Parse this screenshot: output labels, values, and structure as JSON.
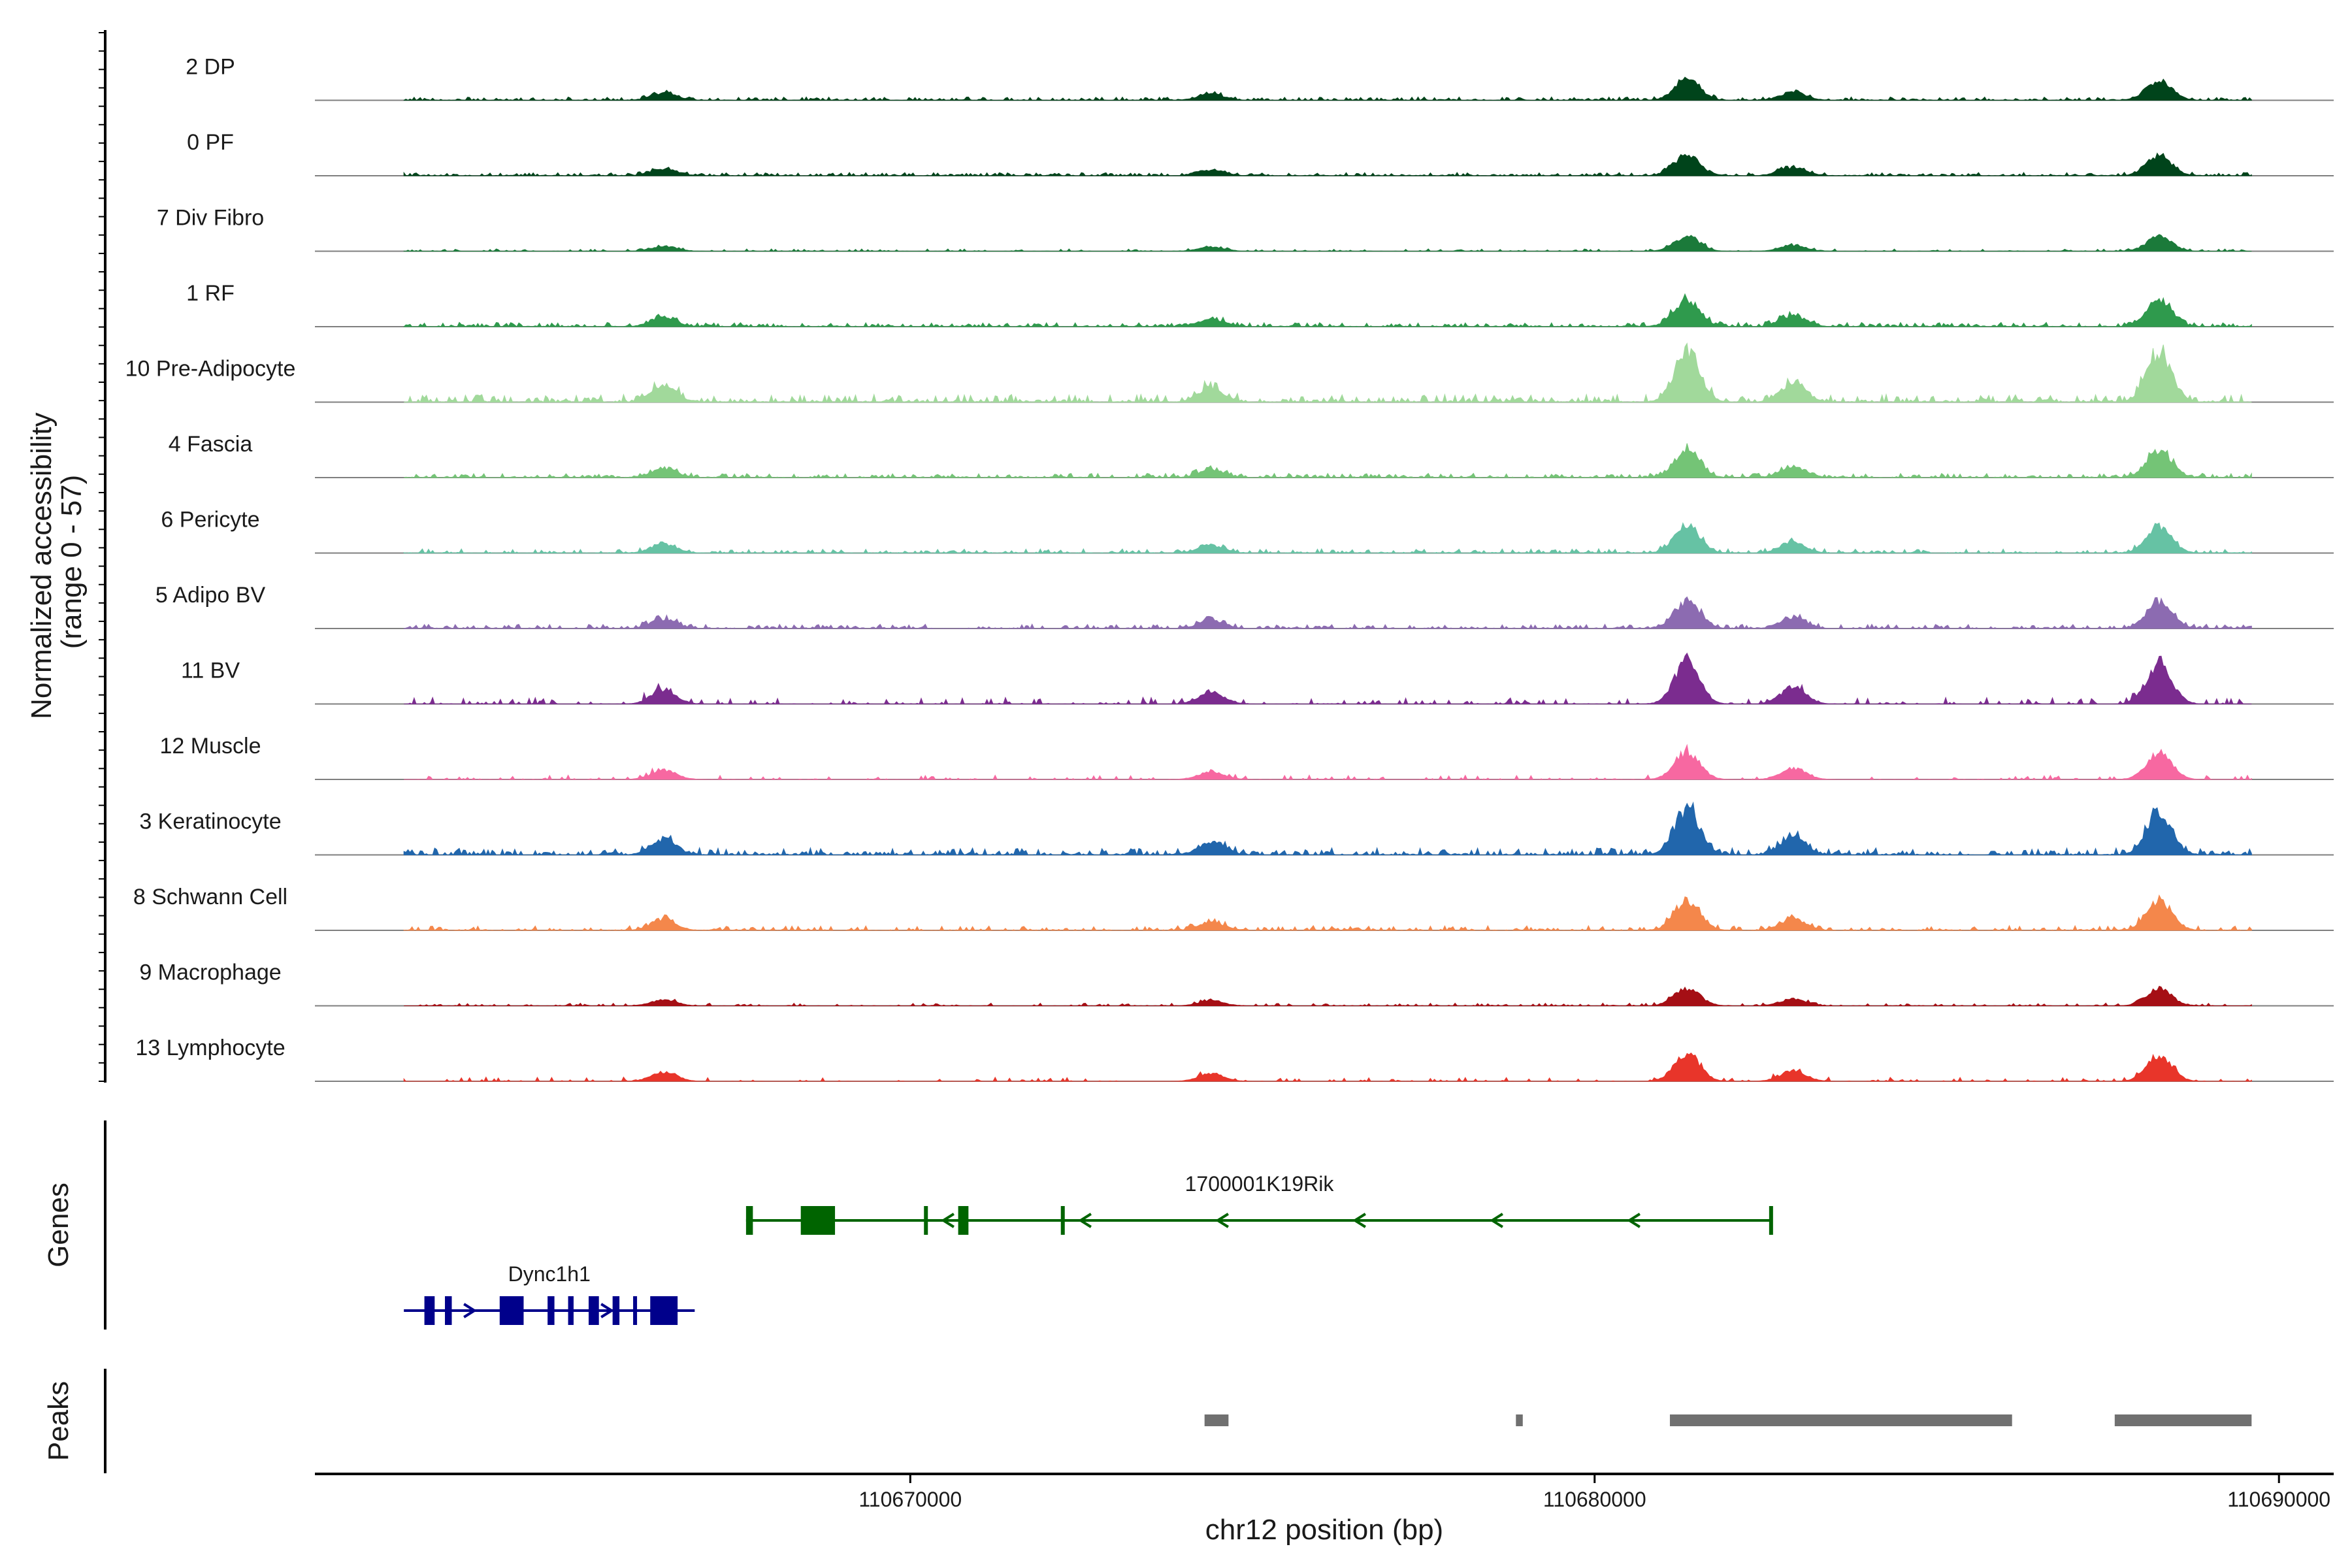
{
  "chart_data": {
    "type": "area",
    "title": "",
    "ylabel_line1": "Normalized accessibility",
    "ylabel_line2": "(range 0 - 57)",
    "y_range": [
      0,
      57
    ],
    "xlabel": "chr12 position (bp)",
    "xlim": [
      110661300,
      110690800
    ],
    "x_ticks": [
      {
        "value": 110670000,
        "label": "110670000"
      },
      {
        "value": 110680000,
        "label": "110680000"
      },
      {
        "value": 110690000,
        "label": "110690000"
      }
    ],
    "tracks": [
      {
        "name": "2 DP",
        "color": "#00441b",
        "scale": 0.42,
        "density": 0.95
      },
      {
        "name": "0 PF",
        "color": "#00441b",
        "scale": 0.42,
        "density": 0.95
      },
      {
        "name": "7 Div Fibro",
        "color": "#1b7a3a",
        "scale": 0.3,
        "density": 0.45
      },
      {
        "name": "1 RF",
        "color": "#2f9a4d",
        "scale": 0.55,
        "density": 0.9
      },
      {
        "name": "10 Pre-Adipocyte",
        "color": "#a1d99b",
        "scale": 1.0,
        "density": 0.85
      },
      {
        "name": "4 Fascia",
        "color": "#74c476",
        "scale": 0.55,
        "density": 0.9
      },
      {
        "name": "6 Pericyte",
        "color": "#66c2a4",
        "scale": 0.55,
        "density": 0.8
      },
      {
        "name": "5 Adipo BV",
        "color": "#8c6bb1",
        "scale": 0.55,
        "density": 0.85
      },
      {
        "name": "11 BV",
        "color": "#7b2c8f",
        "scale": 0.85,
        "density": 0.45
      },
      {
        "name": "12 Muscle",
        "color": "#f768a1",
        "scale": 0.55,
        "density": 0.35
      },
      {
        "name": "3 Keratinocyte",
        "color": "#2166ac",
        "scale": 0.9,
        "density": 0.95
      },
      {
        "name": "8 Schwann Cell",
        "color": "#f4874b",
        "scale": 0.6,
        "density": 0.75
      },
      {
        "name": "9 Macrophage",
        "color": "#a50f15",
        "scale": 0.35,
        "density": 0.5
      },
      {
        "name": "13 Lymphocyte",
        "color": "#e8352a",
        "scale": 0.55,
        "density": 0.3
      }
    ],
    "peak_summits": [
      {
        "pos": 110681350,
        "height": 0.9
      },
      {
        "pos": 110688250,
        "height": 0.85
      },
      {
        "pos": 110682900,
        "height": 0.35
      },
      {
        "pos": 110674400,
        "height": 0.25
      },
      {
        "pos": 110666400,
        "height": 0.3
      }
    ],
    "genes_label": "Genes",
    "genes": [
      {
        "name": "1700001K19Rik",
        "strand": "-",
        "color": "#006400",
        "start": 110667600,
        "end": 110682600,
        "row": 0,
        "exons": [
          [
            110667600,
            110667700
          ],
          [
            110668400,
            110668900
          ],
          [
            110670200,
            110670250
          ],
          [
            110670700,
            110670850
          ],
          [
            110672200,
            110672250
          ],
          [
            110682550,
            110682600
          ]
        ]
      },
      {
        "name": "Dync1h1",
        "strand": "+",
        "color": "#00008b",
        "start": 110662600,
        "end": 110666850,
        "row": 1,
        "exons": [
          [
            110662900,
            110663050
          ],
          [
            110663200,
            110663300
          ],
          [
            110664000,
            110664350
          ],
          [
            110664700,
            110664800
          ],
          [
            110665000,
            110665080
          ],
          [
            110665300,
            110665450
          ],
          [
            110665650,
            110665750
          ],
          [
            110665950,
            110666000
          ],
          [
            110666200,
            110666600
          ]
        ]
      }
    ],
    "peaks_label": "Peaks",
    "peaks": [
      [
        110674300,
        110674650
      ],
      [
        110678850,
        110678950
      ],
      [
        110681100,
        110686100
      ],
      [
        110687600,
        110689600
      ]
    ]
  }
}
